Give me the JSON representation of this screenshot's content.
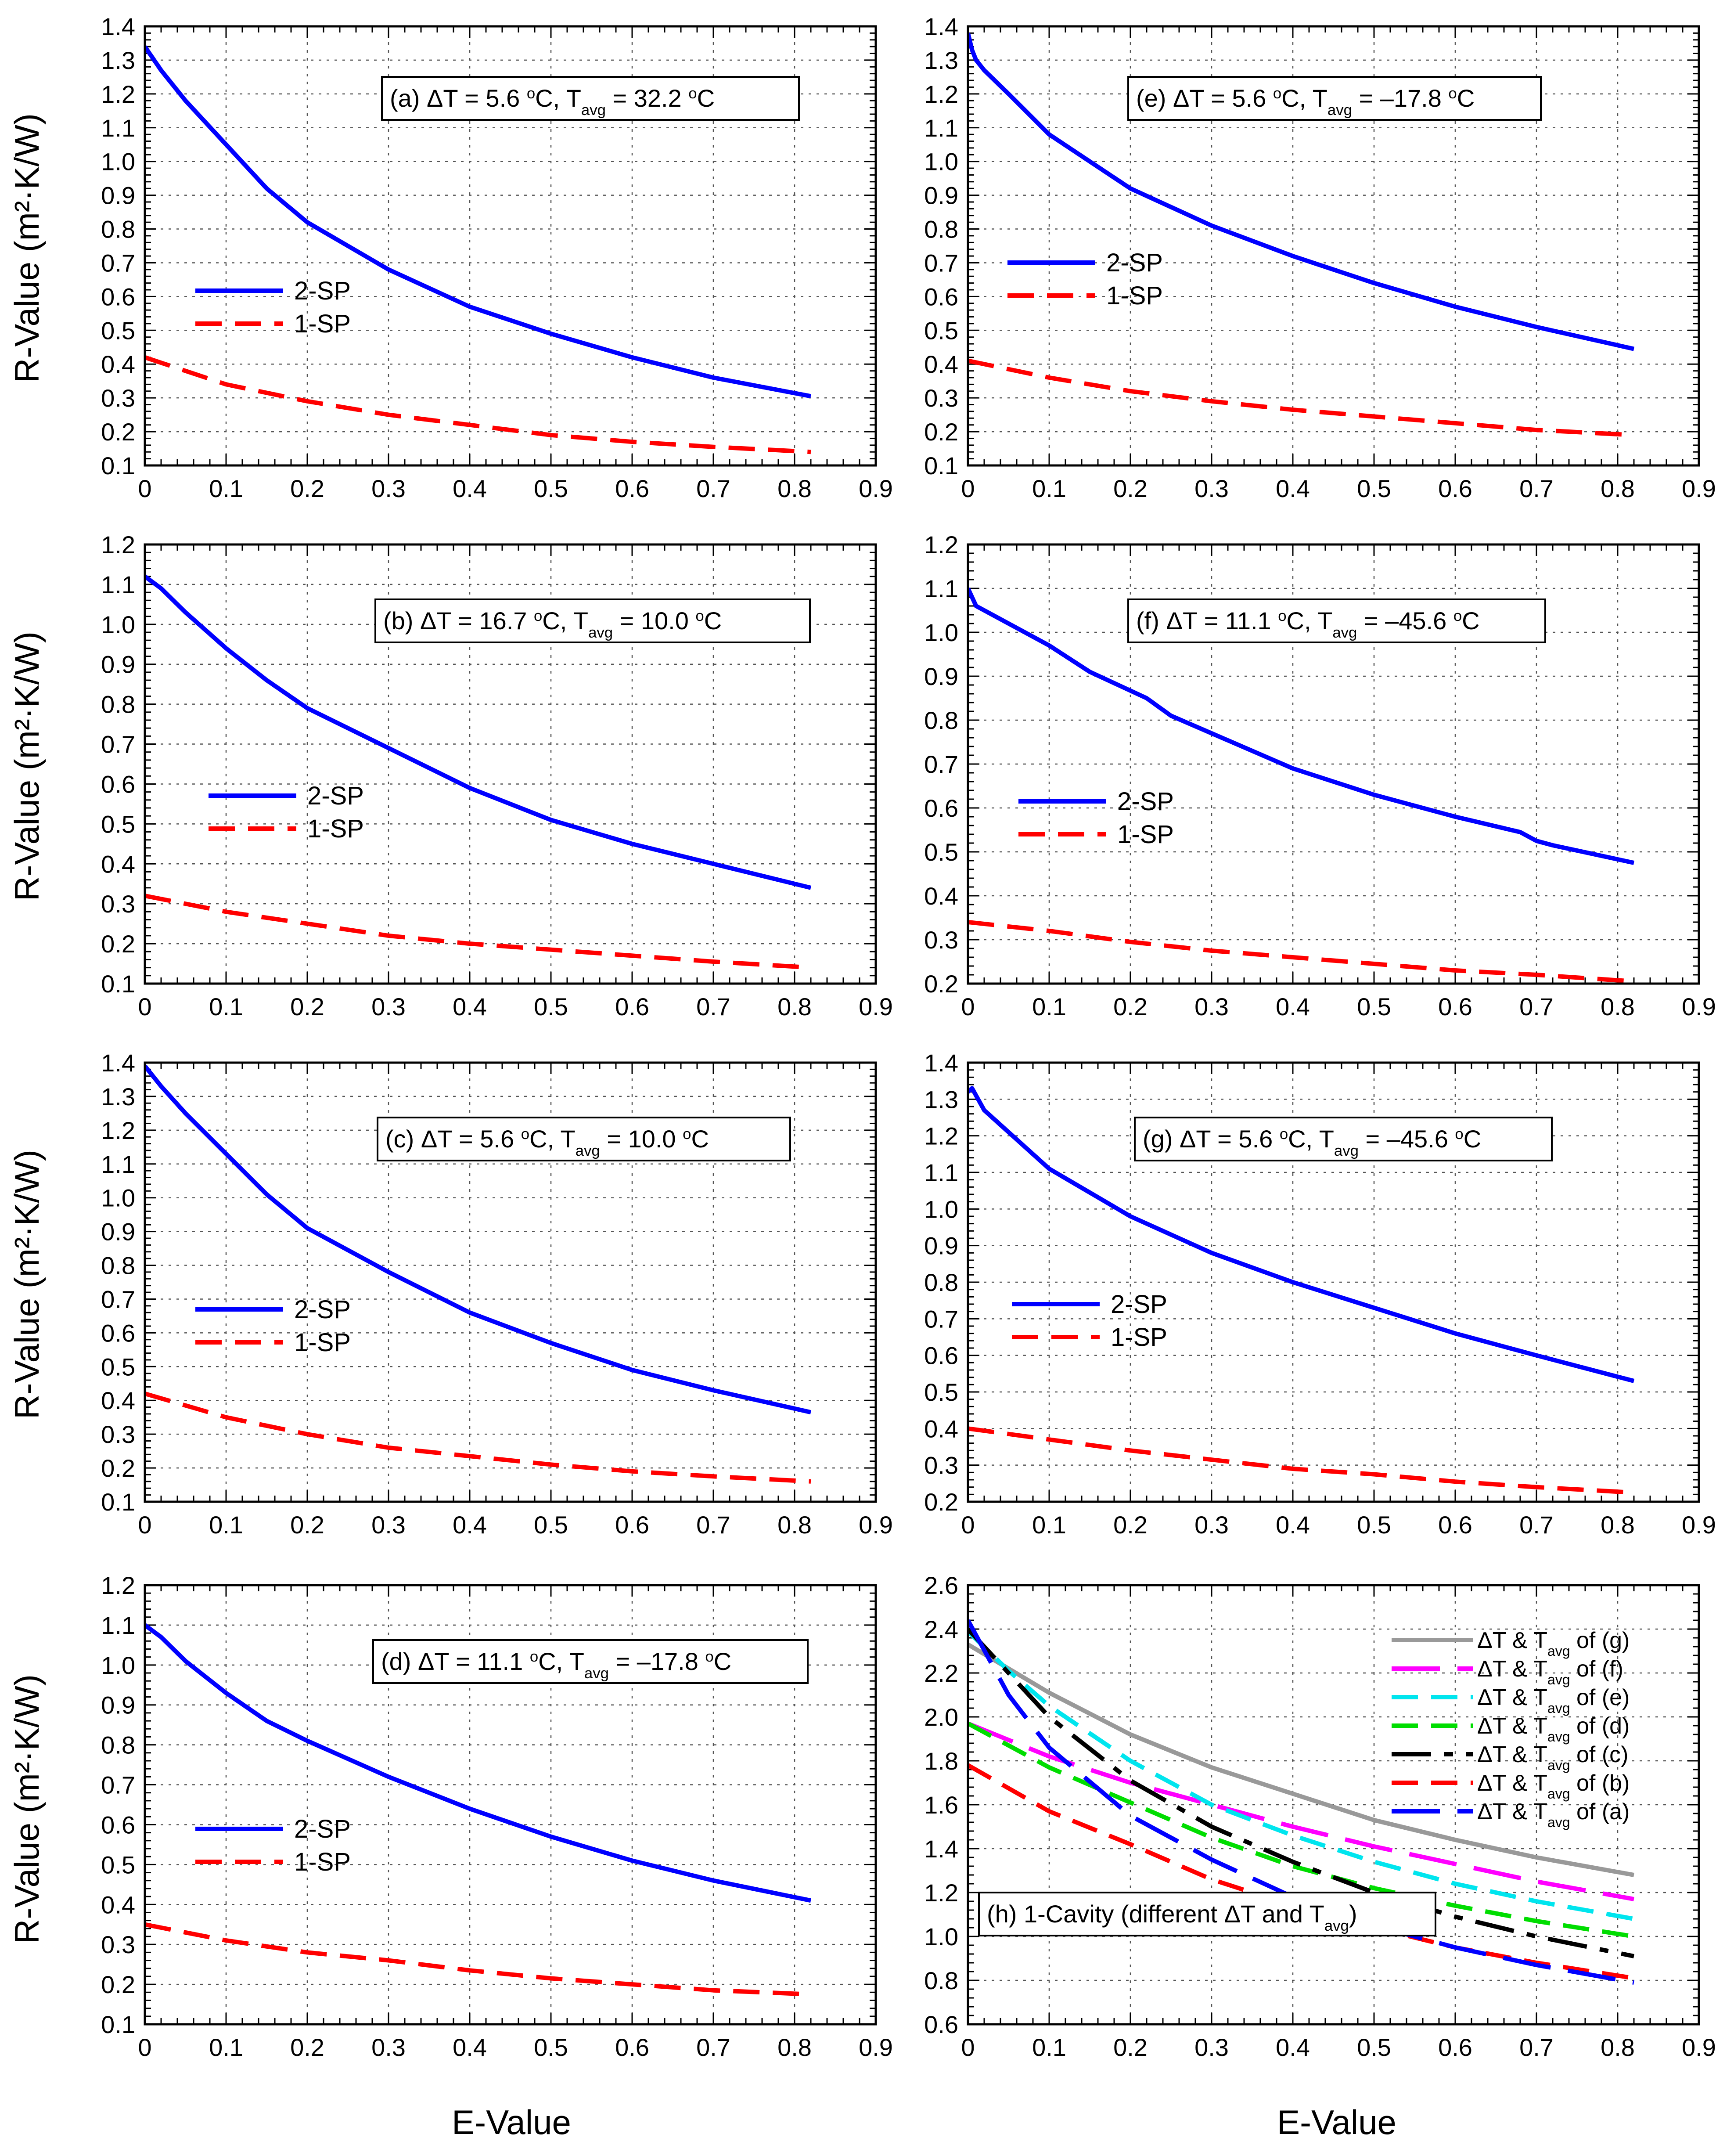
{
  "figure": {
    "ylabel": "R-Value (m²·K/W)",
    "xlabel": "E-Value"
  },
  "chart_data": [
    {
      "id": "a",
      "type": "line",
      "title": "(a) ΔT = 5.6 °C, Tavg = 32.2 °C",
      "title_parts": {
        "pre": "(a) ΔT = 5.6 ",
        "deg1": "o",
        "mid": "C, T",
        "sub": "avg",
        "post": " = 32.2 ",
        "deg2": "o",
        "end": "C"
      },
      "xlim": [
        0,
        0.9
      ],
      "xticks": [
        0,
        0.1,
        0.2,
        0.3,
        0.4,
        0.5,
        0.6,
        0.7,
        0.8,
        0.9
      ],
      "xtick_labels": [
        "0",
        "0.1",
        "0.2",
        "0.3",
        "0.4",
        "0.5",
        "0.6",
        "0.7",
        "0.8",
        "0.9"
      ],
      "ylim": [
        0.1,
        1.4
      ],
      "yticks": [
        "0.1",
        "0.2",
        "0.3",
        "0.4",
        "0.5",
        "0.6",
        "0.7",
        "0.8",
        "0.9",
        "1.0",
        "1.1",
        "1.2",
        "1.3",
        "1.4"
      ],
      "grid": true,
      "legend_position": "center-left",
      "series": [
        {
          "name": "2-SP",
          "color": "#0000ff",
          "dash": "solid",
          "x": [
            0,
            0.02,
            0.05,
            0.1,
            0.15,
            0.2,
            0.3,
            0.4,
            0.5,
            0.6,
            0.7,
            0.82
          ],
          "y": [
            1.34,
            1.27,
            1.18,
            1.05,
            0.92,
            0.82,
            0.68,
            0.57,
            0.49,
            0.42,
            0.36,
            0.305
          ]
        },
        {
          "name": "1-SP",
          "color": "#ff0000",
          "dash": "dash",
          "x": [
            0,
            0.05,
            0.1,
            0.2,
            0.3,
            0.4,
            0.5,
            0.6,
            0.7,
            0.82
          ],
          "y": [
            0.42,
            0.38,
            0.34,
            0.29,
            0.25,
            0.22,
            0.19,
            0.17,
            0.155,
            0.14
          ]
        }
      ]
    },
    {
      "id": "e",
      "type": "line",
      "title": "(e) ΔT = 5.6 °C, Tavg = –17.8 °C",
      "title_parts": {
        "pre": "(e) ΔT = 5.6 ",
        "deg1": "o",
        "mid": "C, T",
        "sub": "avg",
        "post": " = –17.8 ",
        "deg2": "o",
        "end": "C"
      },
      "xlim": [
        0,
        0.9
      ],
      "xticks": [
        0,
        0.1,
        0.2,
        0.3,
        0.4,
        0.5,
        0.6,
        0.7,
        0.8,
        0.9
      ],
      "xtick_labels": [
        "0",
        "0.1",
        "0.2",
        "0.3",
        "0.4",
        "0.5",
        "0.6",
        "0.7",
        "0.8",
        "0.9"
      ],
      "ylim": [
        0.1,
        1.4
      ],
      "yticks": [
        "0.1",
        "0.2",
        "0.3",
        "0.4",
        "0.5",
        "0.6",
        "0.7",
        "0.8",
        "0.9",
        "1.0",
        "1.1",
        "1.2",
        "1.3",
        "1.4"
      ],
      "grid": true,
      "legend_position": "upper-left",
      "series": [
        {
          "name": "2-SP",
          "color": "#0000ff",
          "dash": "solid",
          "x": [
            0,
            0.005,
            0.01,
            0.02,
            0.05,
            0.1,
            0.2,
            0.3,
            0.4,
            0.5,
            0.6,
            0.7,
            0.82
          ],
          "y": [
            1.38,
            1.33,
            1.3,
            1.27,
            1.2,
            1.08,
            0.92,
            0.81,
            0.72,
            0.64,
            0.57,
            0.51,
            0.445
          ]
        },
        {
          "name": "1-SP",
          "color": "#ff0000",
          "dash": "dash",
          "x": [
            0,
            0.1,
            0.2,
            0.3,
            0.4,
            0.5,
            0.6,
            0.7,
            0.82
          ],
          "y": [
            0.41,
            0.36,
            0.32,
            0.29,
            0.265,
            0.245,
            0.225,
            0.205,
            0.19
          ]
        }
      ]
    },
    {
      "id": "b",
      "type": "line",
      "title": "(b) ΔT = 16.7 °C, Tavg = 10.0 °C",
      "title_parts": {
        "pre": "(b) ΔT = 16.7 ",
        "deg1": "o",
        "mid": "C, T",
        "sub": "avg",
        "post": " = 10.0 ",
        "deg2": "o",
        "end": "C"
      },
      "xlim": [
        0,
        0.9
      ],
      "xticks": [
        0,
        0.1,
        0.2,
        0.3,
        0.4,
        0.5,
        0.6,
        0.7,
        0.8,
        0.9
      ],
      "xtick_labels": [
        "0",
        "0.1",
        "0.2",
        "0.3",
        "0.4",
        "0.5",
        "0.6",
        "0.7",
        "0.8",
        "0.9"
      ],
      "ylim": [
        0.1,
        1.2
      ],
      "yticks": [
        "0.1",
        "0.2",
        "0.3",
        "0.4",
        "0.5",
        "0.6",
        "0.7",
        "0.8",
        "0.9",
        "1.0",
        "1.1",
        "1.2"
      ],
      "grid": true,
      "legend_position": "center-left",
      "series": [
        {
          "name": "2-SP",
          "color": "#0000ff",
          "dash": "solid",
          "x": [
            0,
            0.02,
            0.05,
            0.1,
            0.15,
            0.2,
            0.3,
            0.4,
            0.5,
            0.6,
            0.7,
            0.82
          ],
          "y": [
            1.12,
            1.09,
            1.03,
            0.94,
            0.86,
            0.79,
            0.69,
            0.59,
            0.51,
            0.45,
            0.4,
            0.34
          ]
        },
        {
          "name": "1-SP",
          "color": "#ff0000",
          "dash": "dash",
          "x": [
            0,
            0.1,
            0.2,
            0.3,
            0.4,
            0.5,
            0.6,
            0.7,
            0.82
          ],
          "y": [
            0.32,
            0.28,
            0.25,
            0.22,
            0.2,
            0.185,
            0.17,
            0.155,
            0.14
          ]
        }
      ]
    },
    {
      "id": "f",
      "type": "line",
      "title": "(f) ΔT = 11.1 °C, Tavg = –45.6 °C",
      "title_parts": {
        "pre": "(f) ΔT = 11.1 ",
        "deg1": "o",
        "mid": "C, T",
        "sub": "avg",
        "post": " = –45.6 ",
        "deg2": "o",
        "end": "C"
      },
      "xlim": [
        0,
        0.9
      ],
      "xticks": [
        0,
        0.1,
        0.2,
        0.3,
        0.4,
        0.5,
        0.6,
        0.7,
        0.8,
        0.9
      ],
      "xtick_labels": [
        "0",
        "0.1",
        "0.2",
        "0.3",
        "0.4",
        "0.5",
        "0.6",
        "0.7",
        "0.8",
        "0.9"
      ],
      "ylim": [
        0.2,
        1.2
      ],
      "yticks": [
        "0.2",
        "0.3",
        "0.4",
        "0.5",
        "0.6",
        "0.7",
        "0.8",
        "0.9",
        "1.0",
        "1.1",
        "1.2"
      ],
      "grid": true,
      "legend_position": "center-left",
      "series": [
        {
          "name": "2-SP",
          "color": "#0000ff",
          "dash": "solid",
          "x": [
            0,
            0.005,
            0.01,
            0.05,
            0.1,
            0.15,
            0.22,
            0.25,
            0.3,
            0.4,
            0.5,
            0.6,
            0.68,
            0.7,
            0.72,
            0.82
          ],
          "y": [
            1.1,
            1.08,
            1.06,
            1.02,
            0.97,
            0.91,
            0.85,
            0.81,
            0.77,
            0.69,
            0.63,
            0.58,
            0.545,
            0.525,
            0.515,
            0.475
          ]
        },
        {
          "name": "1-SP",
          "color": "#ff0000",
          "dash": "dash",
          "x": [
            0,
            0.1,
            0.2,
            0.3,
            0.4,
            0.5,
            0.6,
            0.7,
            0.82
          ],
          "y": [
            0.34,
            0.32,
            0.295,
            0.275,
            0.26,
            0.245,
            0.23,
            0.22,
            0.205
          ]
        }
      ]
    },
    {
      "id": "c",
      "type": "line",
      "title": "(c) ΔT = 5.6 °C, Tavg = 10.0 °C",
      "title_parts": {
        "pre": "(c) ΔT = 5.6 ",
        "deg1": "o",
        "mid": "C, T",
        "sub": "avg",
        "post": " = 10.0 ",
        "deg2": "o",
        "end": "C"
      },
      "xlim": [
        0,
        0.9
      ],
      "xticks": [
        0,
        0.1,
        0.2,
        0.3,
        0.4,
        0.5,
        0.6,
        0.7,
        0.8,
        0.9
      ],
      "xtick_labels": [
        "0",
        "0.1",
        "0.2",
        "0.3",
        "0.4",
        "0.5",
        "0.6",
        "0.7",
        "0.8",
        "0.9"
      ],
      "ylim": [
        0.1,
        1.4
      ],
      "yticks": [
        "0.1",
        "0.2",
        "0.3",
        "0.4",
        "0.5",
        "0.6",
        "0.7",
        "0.8",
        "0.9",
        "1.0",
        "1.1",
        "1.2",
        "1.3",
        "1.4"
      ],
      "grid": true,
      "legend_position": "center-left",
      "series": [
        {
          "name": "2-SP",
          "color": "#0000ff",
          "dash": "solid",
          "x": [
            0,
            0.02,
            0.05,
            0.1,
            0.15,
            0.2,
            0.3,
            0.4,
            0.5,
            0.6,
            0.7,
            0.82
          ],
          "y": [
            1.39,
            1.33,
            1.25,
            1.13,
            1.01,
            0.91,
            0.78,
            0.66,
            0.57,
            0.49,
            0.43,
            0.365
          ]
        },
        {
          "name": "1-SP",
          "color": "#ff0000",
          "dash": "dash",
          "x": [
            0,
            0.1,
            0.2,
            0.3,
            0.4,
            0.5,
            0.6,
            0.7,
            0.82
          ],
          "y": [
            0.42,
            0.35,
            0.3,
            0.26,
            0.235,
            0.21,
            0.19,
            0.175,
            0.16
          ]
        }
      ]
    },
    {
      "id": "g",
      "type": "line",
      "title": "(g) ΔT = 5.6 °C, Tavg = –45.6 °C",
      "title_parts": {
        "pre": "(g) ΔT = 5.6 ",
        "deg1": "o",
        "mid": "C, T",
        "sub": "avg",
        "post": " = –45.6 ",
        "deg2": "o",
        "end": "C"
      },
      "xlim": [
        0,
        0.9
      ],
      "xticks": [
        0,
        0.1,
        0.2,
        0.3,
        0.4,
        0.5,
        0.6,
        0.7,
        0.8,
        0.9
      ],
      "xtick_labels": [
        "0",
        "0.1",
        "0.2",
        "0.3",
        "0.4",
        "0.5",
        "0.6",
        "0.7",
        "0.8",
        "0.9"
      ],
      "ylim": [
        0.2,
        1.4
      ],
      "yticks": [
        "0.2",
        "0.3",
        "0.4",
        "0.5",
        "0.6",
        "0.7",
        "0.8",
        "0.9",
        "1.0",
        "1.1",
        "1.2",
        "1.3",
        "1.4"
      ],
      "grid": true,
      "legend_position": "center-left",
      "series": [
        {
          "name": "2-SP",
          "color": "#0000ff",
          "dash": "solid",
          "x": [
            0,
            0.005,
            0.01,
            0.02,
            0.05,
            0.1,
            0.2,
            0.3,
            0.4,
            0.5,
            0.6,
            0.7,
            0.82
          ],
          "y": [
            1.32,
            1.33,
            1.31,
            1.27,
            1.21,
            1.11,
            0.98,
            0.88,
            0.8,
            0.73,
            0.66,
            0.6,
            0.53
          ]
        },
        {
          "name": "1-SP",
          "color": "#ff0000",
          "dash": "dash",
          "x": [
            0,
            0.1,
            0.2,
            0.3,
            0.4,
            0.5,
            0.6,
            0.7,
            0.82
          ],
          "y": [
            0.4,
            0.37,
            0.34,
            0.315,
            0.29,
            0.275,
            0.255,
            0.24,
            0.225
          ]
        }
      ]
    },
    {
      "id": "d",
      "type": "line",
      "title": "(d) ΔT = 11.1 °C, Tavg = –17.8 °C",
      "title_parts": {
        "pre": "(d) ΔT = 11.1 ",
        "deg1": "o",
        "mid": "C, T",
        "sub": "avg",
        "post": " = –17.8 ",
        "deg2": "o",
        "end": "C"
      },
      "xlim": [
        0,
        0.9
      ],
      "xticks": [
        0,
        0.1,
        0.2,
        0.3,
        0.4,
        0.5,
        0.6,
        0.7,
        0.8,
        0.9
      ],
      "xtick_labels": [
        "0",
        "0.1",
        "0.2",
        "0.3",
        "0.4",
        "0.5",
        "0.6",
        "0.7",
        "0.8",
        "0.9"
      ],
      "ylim": [
        0.1,
        1.2
      ],
      "yticks": [
        "0.1",
        "0.2",
        "0.3",
        "0.4",
        "0.5",
        "0.6",
        "0.7",
        "0.8",
        "0.9",
        "1.0",
        "1.1",
        "1.2"
      ],
      "grid": true,
      "legend_position": "lower-left",
      "series": [
        {
          "name": "2-SP",
          "color": "#0000ff",
          "dash": "solid",
          "x": [
            0,
            0.02,
            0.05,
            0.1,
            0.15,
            0.2,
            0.3,
            0.4,
            0.5,
            0.6,
            0.7,
            0.82
          ],
          "y": [
            1.1,
            1.07,
            1.01,
            0.93,
            0.86,
            0.81,
            0.72,
            0.64,
            0.57,
            0.51,
            0.46,
            0.41
          ]
        },
        {
          "name": "1-SP",
          "color": "#ff0000",
          "dash": "dash",
          "x": [
            0,
            0.1,
            0.2,
            0.3,
            0.4,
            0.5,
            0.6,
            0.7,
            0.82
          ],
          "y": [
            0.35,
            0.31,
            0.28,
            0.26,
            0.235,
            0.215,
            0.2,
            0.185,
            0.175
          ]
        }
      ]
    },
    {
      "id": "h",
      "type": "line",
      "title": "(h) 1-Cavity (different ΔT and Tavg)",
      "title_parts": {
        "pre": "(h) 1-Cavity (different ΔT and T",
        "sub": "avg",
        "end": ")"
      },
      "xlim": [
        0,
        0.9
      ],
      "xticks": [
        0,
        0.1,
        0.2,
        0.3,
        0.4,
        0.5,
        0.6,
        0.7,
        0.8,
        0.9
      ],
      "xtick_labels": [
        "0",
        "0.1",
        "0.2",
        "0.3",
        "0.4",
        "0.5",
        "0.6",
        "0.7",
        "0.8",
        "0.9"
      ],
      "ylim": [
        0.6,
        2.6
      ],
      "yticks": [
        "0.6",
        "0.8",
        "1.0",
        "1.2",
        "1.4",
        "1.6",
        "1.8",
        "2.0",
        "2.2",
        "2.4",
        "2.6"
      ],
      "grid": true,
      "legend_position": "upper-right",
      "legend_prefix": "ΔT & T",
      "legend_sub": "avg",
      "series": [
        {
          "name": "of (g)",
          "color": "#999999",
          "dash": "solid",
          "x": [
            0,
            0.1,
            0.2,
            0.3,
            0.4,
            0.5,
            0.6,
            0.7,
            0.82
          ],
          "y": [
            2.33,
            2.11,
            1.92,
            1.77,
            1.65,
            1.53,
            1.44,
            1.36,
            1.28
          ]
        },
        {
          "name": "of (f)",
          "color": "#ff00ff",
          "dash": "longdash",
          "x": [
            0,
            0.1,
            0.2,
            0.3,
            0.4,
            0.5,
            0.6,
            0.7,
            0.82
          ],
          "y": [
            1.97,
            1.82,
            1.7,
            1.6,
            1.5,
            1.41,
            1.33,
            1.25,
            1.17
          ]
        },
        {
          "name": "of (e)",
          "color": "#00e5ee",
          "dash": "dash",
          "x": [
            0,
            0.05,
            0.1,
            0.2,
            0.3,
            0.4,
            0.5,
            0.6,
            0.7,
            0.82
          ],
          "y": [
            2.39,
            2.21,
            2.05,
            1.8,
            1.6,
            1.46,
            1.34,
            1.24,
            1.16,
            1.08
          ]
        },
        {
          "name": "of (d)",
          "color": "#00dd00",
          "dash": "dash",
          "x": [
            0,
            0.1,
            0.2,
            0.3,
            0.4,
            0.5,
            0.6,
            0.7,
            0.82
          ],
          "y": [
            1.97,
            1.77,
            1.61,
            1.45,
            1.32,
            1.22,
            1.14,
            1.07,
            1.0
          ]
        },
        {
          "name": "of (c)",
          "color": "#000000",
          "dash": "dashdot",
          "x": [
            0,
            0.05,
            0.1,
            0.2,
            0.3,
            0.4,
            0.5,
            0.6,
            0.7,
            0.82
          ],
          "y": [
            2.4,
            2.2,
            2.0,
            1.71,
            1.5,
            1.34,
            1.2,
            1.09,
            1.0,
            0.91
          ]
        },
        {
          "name": "of (b)",
          "color": "#ff0000",
          "dash": "dash",
          "x": [
            0,
            0.1,
            0.2,
            0.3,
            0.4,
            0.5,
            0.6,
            0.7,
            0.82
          ],
          "y": [
            1.78,
            1.57,
            1.42,
            1.26,
            1.14,
            1.04,
            0.95,
            0.88,
            0.81
          ]
        },
        {
          "name": "of (a)",
          "color": "#0000ff",
          "dash": "longdash",
          "x": [
            0,
            0.05,
            0.1,
            0.2,
            0.3,
            0.4,
            0.5,
            0.6,
            0.7,
            0.82
          ],
          "y": [
            2.44,
            2.1,
            1.86,
            1.55,
            1.35,
            1.18,
            1.05,
            0.95,
            0.87,
            0.79
          ]
        }
      ]
    }
  ]
}
